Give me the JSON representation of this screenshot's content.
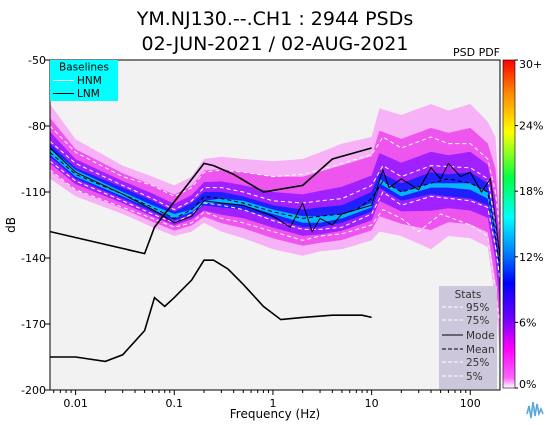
{
  "chart_data": {
    "type": "heatmap",
    "title": "YM.NJ130.--.CH1 : 2944 PSDs",
    "subtitle": "02-JUN-2021 / 02-AUG-2021",
    "pdf_label": "PSD PDF",
    "xlabel": "Frequency (Hz)",
    "ylabel": "dB",
    "xscale": "log",
    "xlim": [
      0.0055,
      200
    ],
    "ylim": [
      -200,
      -50
    ],
    "x_ticks": [
      0.01,
      0.1,
      1,
      10,
      100
    ],
    "x_tick_labels": [
      "0.01",
      "0.1",
      "1",
      "10",
      "100"
    ],
    "y_ticks": [
      -50,
      -80,
      -110,
      -140,
      -170,
      -200
    ],
    "y_tick_labels": [
      "-50",
      "-80",
      "-110",
      "-140",
      "-170",
      "-200"
    ],
    "colorbar": {
      "ticks": [
        0,
        6,
        12,
        18,
        24,
        30
      ],
      "tick_labels": [
        "0%",
        "6%",
        "12%",
        "18%",
        "24%",
        "30+"
      ],
      "colors": [
        "#ffffff",
        "#ff00ff",
        "#6600ff",
        "#0000ff",
        "#00ffff",
        "#00ff00",
        "#ffff00",
        "#ff8800",
        "#ff0000"
      ]
    },
    "baselines": {
      "title": "Baselines",
      "items": [
        {
          "name": "HNM",
          "color": "#ffffff"
        },
        {
          "name": "LNM",
          "color": "#000000"
        }
      ],
      "background": "#00ffff"
    },
    "stats_legend": {
      "title": "Stats",
      "items": [
        {
          "name": "95%",
          "color": "#ffffff",
          "dash": "dashed"
        },
        {
          "name": "75%",
          "color": "#ffffff",
          "dash": "dashed"
        },
        {
          "name": "Mode",
          "color": "#000000",
          "dash": "solid"
        },
        {
          "name": "Mean",
          "color": "#000000",
          "dash": "dashed"
        },
        {
          "name": "25%",
          "color": "#ffffff",
          "dash": "dashed"
        },
        {
          "name": "5%",
          "color": "#ffffff",
          "dash": "dashed"
        }
      ]
    },
    "series": [
      {
        "name": "HNM",
        "x": [
          0.0055,
          0.05,
          0.063,
          0.2,
          0.25,
          0.4,
          0.8,
          2,
          4,
          10
        ],
        "y": [
          -128,
          -138,
          -126,
          -97,
          -98,
          -102,
          -110,
          -107,
          -95,
          -90
        ]
      },
      {
        "name": "LNM",
        "x": [
          0.0055,
          0.01,
          0.02,
          0.03,
          0.05,
          0.063,
          0.08,
          0.1,
          0.15,
          0.2,
          0.25,
          0.35,
          0.5,
          0.8,
          1.2,
          2,
          4,
          6,
          8,
          10
        ],
        "y": [
          -185,
          -185,
          -187,
          -184,
          -173,
          -158,
          -162,
          -158,
          -150,
          -141,
          -141,
          -145,
          -152,
          -162,
          -168,
          -167,
          -166,
          -166,
          -166,
          -167
        ]
      },
      {
        "name": "Mean",
        "x": [
          0.0055,
          0.01,
          0.03,
          0.06,
          0.1,
          0.15,
          0.2,
          0.3,
          0.5,
          1,
          2,
          3,
          5,
          7,
          10,
          13,
          20,
          40,
          60,
          100,
          150,
          180,
          200
        ],
        "y": [
          -92,
          -102,
          -111,
          -117,
          -122,
          -118,
          -112,
          -113,
          -115,
          -119,
          -122,
          -121,
          -120,
          -118,
          -113,
          -105,
          -110,
          -106,
          -104,
          -106,
          -110,
          -130,
          -145
        ]
      },
      {
        "name": "Mode",
        "x": [
          0.0055,
          0.01,
          0.03,
          0.06,
          0.1,
          0.15,
          0.2,
          0.3,
          0.5,
          1,
          1.5,
          2,
          2.5,
          3,
          4,
          5,
          7,
          10,
          13,
          15,
          20,
          30,
          40,
          50,
          60,
          80,
          100,
          130,
          160,
          200
        ],
        "y": [
          -90,
          -101,
          -111,
          -118,
          -124,
          -121,
          -114,
          -115,
          -116,
          -121,
          -126,
          -115,
          -128,
          -122,
          -125,
          -120,
          -118,
          -116,
          -100,
          -108,
          -104,
          -109,
          -99,
          -104,
          -97,
          -103,
          -101,
          -110,
          -104,
          -140
        ]
      },
      {
        "name": "25%",
        "x": [
          0.0055,
          0.01,
          0.03,
          0.06,
          0.1,
          0.15,
          0.2,
          0.3,
          0.5,
          1,
          2,
          3,
          5,
          10,
          13,
          20,
          40,
          100,
          150,
          180,
          200
        ],
        "y": [
          -96,
          -105,
          -114,
          -120,
          -124,
          -120,
          -115,
          -116,
          -118,
          -123,
          -127,
          -127,
          -126,
          -120,
          -110,
          -116,
          -112,
          -114,
          -117,
          -135,
          -150
        ]
      },
      {
        "name": "75%",
        "x": [
          0.0055,
          0.01,
          0.03,
          0.06,
          0.1,
          0.15,
          0.2,
          0.3,
          0.5,
          1,
          2,
          3,
          5,
          10,
          13,
          20,
          40,
          100,
          150,
          180,
          200
        ],
        "y": [
          -87,
          -97,
          -107,
          -113,
          -118,
          -114,
          -108,
          -108,
          -110,
          -114,
          -115,
          -114,
          -113,
          -107,
          -98,
          -103,
          -98,
          -99,
          -104,
          -125,
          -140
        ]
      },
      {
        "name": "5%",
        "x": [
          0.0055,
          0.01,
          0.03,
          0.06,
          0.1,
          0.15,
          0.2,
          0.3,
          0.5,
          1,
          2,
          3,
          5,
          10,
          13,
          20,
          30,
          50,
          100,
          150,
          180,
          200
        ],
        "y": [
          -100,
          -109,
          -117,
          -122,
          -126,
          -124,
          -119,
          -122,
          -124,
          -128,
          -132,
          -130,
          -129,
          -125,
          -118,
          -122,
          -128,
          -120,
          -125,
          -130,
          -155,
          -170
        ]
      },
      {
        "name": "95%",
        "x": [
          0.0055,
          0.01,
          0.03,
          0.06,
          0.1,
          0.15,
          0.2,
          0.3,
          0.5,
          1,
          2,
          3,
          5,
          10,
          13,
          20,
          40,
          60,
          100,
          150,
          180,
          200
        ],
        "y": [
          -80,
          -92,
          -103,
          -107,
          -112,
          -108,
          -101,
          -100,
          -101,
          -103,
          -102,
          -100,
          -97,
          -93,
          -85,
          -90,
          -85,
          -88,
          -88,
          -95,
          -110,
          -128
        ]
      }
    ],
    "density_envelope": {
      "x": [
        0.0055,
        0.01,
        0.03,
        0.06,
        0.1,
        0.15,
        0.2,
        0.3,
        0.5,
        1,
        2,
        3,
        5,
        10,
        12,
        20,
        40,
        60,
        100,
        150,
        180,
        195,
        200
      ],
      "upper": [
        -70,
        -86,
        -98,
        -103,
        -107,
        -103,
        -95,
        -94,
        -95,
        -96,
        -95,
        -92,
        -88,
        -85,
        -72,
        -75,
        -70,
        -73,
        -70,
        -78,
        -85,
        -110,
        -125
      ],
      "lower": [
        -104,
        -112,
        -120,
        -126,
        -130,
        -128,
        -124,
        -128,
        -131,
        -136,
        -139,
        -137,
        -136,
        -132,
        -128,
        -130,
        -136,
        -130,
        -131,
        -135,
        -160,
        -178,
        -185
      ],
      "core_upper": [
        -88,
        -99,
        -108,
        -114,
        -119,
        -115,
        -110,
        -110,
        -112,
        -116,
        -118,
        -117,
        -116,
        -110,
        -101,
        -106,
        -101,
        -102,
        -101,
        -106,
        -126,
        -140,
        -148
      ],
      "core_lower": [
        -94,
        -104,
        -113,
        -119,
        -123,
        -120,
        -116,
        -117,
        -118,
        -122,
        -126,
        -126,
        -124,
        -119,
        -108,
        -114,
        -111,
        -112,
        -113,
        -116,
        -133,
        -148,
        -155
      ],
      "peak_upper": [
        -90,
        -100,
        -110,
        -116,
        -120,
        -118,
        -114,
        -113,
        -114,
        -118,
        -121,
        -121,
        -120,
        -115,
        -104,
        -110,
        -106,
        -106,
        -106,
        -110,
        -129,
        -144,
        -151
      ],
      "peak_lower": [
        -93,
        -103,
        -112,
        -118,
        -122,
        -119,
        -115,
        -115,
        -116,
        -120,
        -124,
        -124,
        -122,
        -117,
        -106,
        -112,
        -108,
        -108,
        -109,
        -113,
        -131,
        -146,
        -153
      ]
    }
  }
}
